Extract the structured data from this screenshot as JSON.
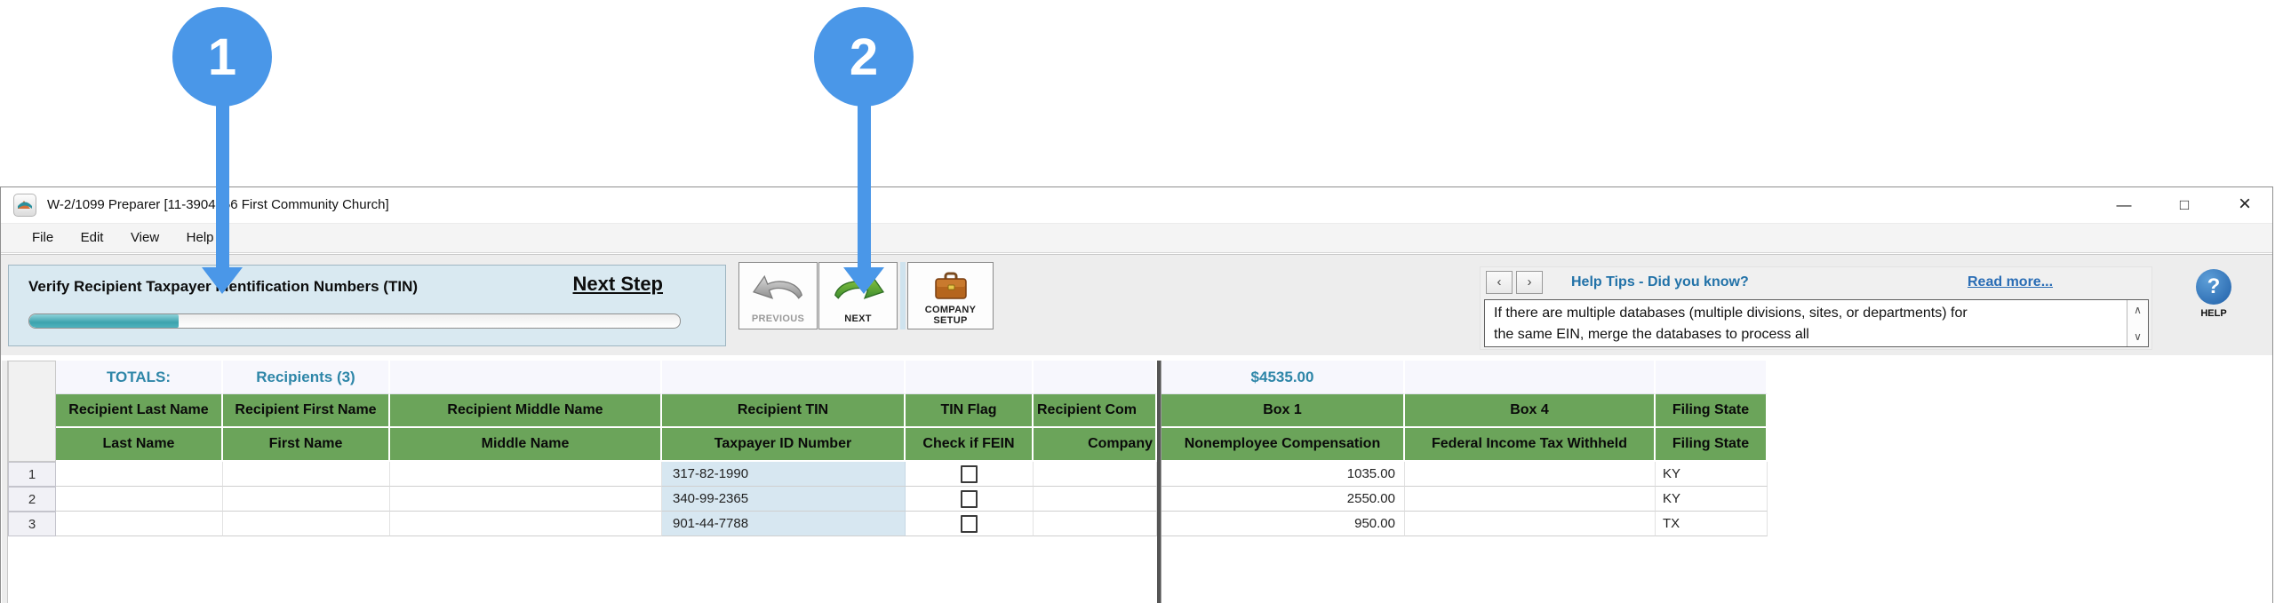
{
  "callouts": {
    "step1": "1",
    "step2": "2"
  },
  "window": {
    "title": "W-2/1099 Preparer [11-3904756 First Community Church]",
    "controls": {
      "minimize": "—",
      "maximize": "□",
      "close": "×"
    }
  },
  "menu": {
    "items": [
      "File",
      "Edit",
      "View",
      "Help"
    ]
  },
  "toolbar": {
    "step_panel": {
      "label": "Verify Recipient Taxpayer Identification Numbers (TIN)",
      "next_step": "Next Step",
      "progress_percent": 23
    },
    "previous_label": "PREVIOUS",
    "next_label": "NEXT",
    "company_setup_label": "COMPANY SETUP",
    "help_tips": {
      "prev_glyph": "‹",
      "next_glyph": "›",
      "title": "Help Tips - Did you know?",
      "read_more": "Read more...",
      "tip": "If there are multiple databases (multiple divisions, sites, or departments) for the same EIN, merge the databases to process all",
      "scroll_up": "∧",
      "scroll_down": "∨"
    },
    "help_button": {
      "glyph": "?",
      "label": "HELP"
    }
  },
  "grid": {
    "totals": {
      "label": "TOTALS:",
      "recipients": "Recipients (3)",
      "box1_total": "$4535.00"
    },
    "header_row1": [
      "Recipient Last Name",
      "Recipient First Name",
      "Recipient Middle Name",
      "Recipient TIN",
      "TIN Flag",
      "Recipient Com",
      "Box 1",
      "Box 4",
      "Filing State"
    ],
    "header_row2": [
      "Last Name",
      "First Name",
      "Middle Name",
      "Taxpayer ID Number",
      "Check if FEIN",
      "Company",
      "Nonemployee Compensation",
      "Federal Income Tax Withheld",
      "Filing State"
    ],
    "rows": [
      {
        "num": "1",
        "last_name": "",
        "first_name": "",
        "middle_name": "",
        "tin": "317-82-1990",
        "tin_flag": false,
        "company": "",
        "box1": "1035.00",
        "box4": "",
        "filing_state": "KY"
      },
      {
        "num": "2",
        "last_name": "",
        "first_name": "",
        "middle_name": "",
        "tin": "340-99-2365",
        "tin_flag": false,
        "company": "",
        "box1": "2550.00",
        "box4": "",
        "filing_state": "KY"
      },
      {
        "num": "3",
        "last_name": "",
        "first_name": "",
        "middle_name": "",
        "tin": "901-44-7788",
        "tin_flag": false,
        "company": "",
        "box1": "950.00",
        "box4": "",
        "filing_state": "TX"
      }
    ]
  },
  "colors": {
    "callout_blue": "#4a97e8",
    "header_green": "#6ba45a",
    "accent_teal": "#2e86a8",
    "progress_teal": "#45adb8",
    "step_panel_bg": "#d9e9f1",
    "help_link_blue": "#2a6db5"
  }
}
